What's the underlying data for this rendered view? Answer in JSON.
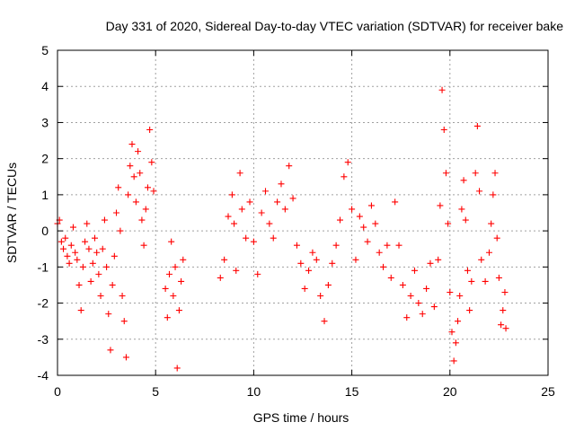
{
  "chart_data": {
    "type": "scatter",
    "title": "Day 331 of 2020, Sidereal Day-to-day VTEC variation (SDTVAR) for receiver bake",
    "xlabel": "GPS time / hours",
    "ylabel": "SDTVAR / TECUs",
    "xlim": [
      0,
      25
    ],
    "ylim": [
      -4,
      5
    ],
    "xticks": [
      0,
      5,
      10,
      15,
      20,
      25
    ],
    "yticks": [
      -4,
      -3,
      -2,
      -1,
      0,
      1,
      2,
      3,
      4,
      5
    ],
    "xtick_labels": [
      "0",
      "5",
      "10",
      "15",
      "20",
      "25"
    ],
    "ytick_labels": [
      "-4",
      "-3",
      "-2",
      "-1",
      "0",
      "1",
      "2",
      "3",
      "4",
      "5"
    ],
    "grid": true,
    "marker": "+",
    "series": [
      {
        "name": "SDTVAR",
        "color": "#ff0000",
        "points": [
          [
            0.0,
            0.2
          ],
          [
            0.1,
            0.3
          ],
          [
            0.2,
            -0.3
          ],
          [
            0.3,
            -0.5
          ],
          [
            0.4,
            -0.2
          ],
          [
            0.5,
            -0.7
          ],
          [
            0.6,
            -0.9
          ],
          [
            0.7,
            -0.4
          ],
          [
            0.8,
            0.1
          ],
          [
            0.9,
            -0.6
          ],
          [
            1.0,
            -0.8
          ],
          [
            1.1,
            -1.5
          ],
          [
            1.2,
            -2.2
          ],
          [
            1.3,
            -1.0
          ],
          [
            1.4,
            -0.3
          ],
          [
            1.5,
            0.2
          ],
          [
            1.6,
            -0.5
          ],
          [
            1.7,
            -1.4
          ],
          [
            1.8,
            -0.9
          ],
          [
            1.9,
            -0.2
          ],
          [
            2.0,
            -0.6
          ],
          [
            2.1,
            -1.2
          ],
          [
            2.2,
            -1.8
          ],
          [
            2.3,
            -0.5
          ],
          [
            2.4,
            0.3
          ],
          [
            2.5,
            -1.0
          ],
          [
            2.6,
            -2.3
          ],
          [
            2.7,
            -3.3
          ],
          [
            2.8,
            -1.5
          ],
          [
            2.9,
            -0.7
          ],
          [
            3.0,
            0.5
          ],
          [
            3.1,
            1.2
          ],
          [
            3.2,
            0.0
          ],
          [
            3.3,
            -1.8
          ],
          [
            3.4,
            -2.5
          ],
          [
            3.5,
            -3.5
          ],
          [
            3.6,
            1.0
          ],
          [
            3.7,
            1.8
          ],
          [
            3.8,
            2.4
          ],
          [
            3.9,
            1.5
          ],
          [
            4.0,
            0.8
          ],
          [
            4.1,
            2.2
          ],
          [
            4.2,
            1.6
          ],
          [
            4.3,
            0.3
          ],
          [
            4.4,
            -0.4
          ],
          [
            4.5,
            0.6
          ],
          [
            4.6,
            1.2
          ],
          [
            4.7,
            2.8
          ],
          [
            4.8,
            1.9
          ],
          [
            4.9,
            1.1
          ],
          [
            5.5,
            -1.6
          ],
          [
            5.6,
            -2.4
          ],
          [
            5.7,
            -1.2
          ],
          [
            5.8,
            -0.3
          ],
          [
            5.9,
            -1.8
          ],
          [
            6.0,
            -1.0
          ],
          [
            6.1,
            -3.8
          ],
          [
            6.2,
            -2.2
          ],
          [
            6.3,
            -1.4
          ],
          [
            6.4,
            -0.8
          ],
          [
            8.3,
            -1.3
          ],
          [
            8.5,
            -0.8
          ],
          [
            8.7,
            0.4
          ],
          [
            8.9,
            1.0
          ],
          [
            9.0,
            0.2
          ],
          [
            9.1,
            -1.1
          ],
          [
            9.3,
            1.6
          ],
          [
            9.4,
            0.6
          ],
          [
            9.6,
            -0.2
          ],
          [
            9.8,
            0.8
          ],
          [
            10.0,
            -0.3
          ],
          [
            10.2,
            -1.2
          ],
          [
            10.4,
            0.5
          ],
          [
            10.6,
            1.1
          ],
          [
            10.8,
            0.2
          ],
          [
            11.0,
            -0.2
          ],
          [
            11.2,
            0.8
          ],
          [
            11.4,
            1.3
          ],
          [
            11.6,
            0.6
          ],
          [
            11.8,
            1.8
          ],
          [
            12.0,
            0.9
          ],
          [
            12.2,
            -0.4
          ],
          [
            12.4,
            -0.9
          ],
          [
            12.6,
            -1.6
          ],
          [
            12.8,
            -1.1
          ],
          [
            13.0,
            -0.6
          ],
          [
            13.2,
            -0.8
          ],
          [
            13.4,
            -1.8
          ],
          [
            13.6,
            -2.5
          ],
          [
            13.8,
            -1.5
          ],
          [
            14.0,
            -0.9
          ],
          [
            14.2,
            -0.4
          ],
          [
            14.4,
            0.3
          ],
          [
            14.6,
            1.5
          ],
          [
            14.8,
            1.9
          ],
          [
            15.0,
            0.6
          ],
          [
            15.2,
            -0.8
          ],
          [
            15.4,
            0.4
          ],
          [
            15.6,
            0.1
          ],
          [
            15.8,
            -0.3
          ],
          [
            16.0,
            0.7
          ],
          [
            16.2,
            0.2
          ],
          [
            16.4,
            -0.6
          ],
          [
            16.6,
            -1.0
          ],
          [
            16.8,
            -0.4
          ],
          [
            17.0,
            -1.3
          ],
          [
            17.2,
            0.8
          ],
          [
            17.4,
            -0.4
          ],
          [
            17.6,
            -1.5
          ],
          [
            17.8,
            -2.4
          ],
          [
            18.0,
            -1.8
          ],
          [
            18.2,
            -1.1
          ],
          [
            18.4,
            -2.0
          ],
          [
            18.6,
            -2.3
          ],
          [
            18.8,
            -1.6
          ],
          [
            19.0,
            -0.9
          ],
          [
            19.2,
            -2.1
          ],
          [
            19.4,
            -0.8
          ],
          [
            19.5,
            0.7
          ],
          [
            19.6,
            3.9
          ],
          [
            19.7,
            2.8
          ],
          [
            19.8,
            1.6
          ],
          [
            19.9,
            0.2
          ],
          [
            20.0,
            -1.7
          ],
          [
            20.1,
            -2.8
          ],
          [
            20.2,
            -3.6
          ],
          [
            20.3,
            -3.1
          ],
          [
            20.4,
            -2.5
          ],
          [
            20.5,
            -1.8
          ],
          [
            20.6,
            0.6
          ],
          [
            20.7,
            1.4
          ],
          [
            20.8,
            0.3
          ],
          [
            20.9,
            -1.1
          ],
          [
            21.0,
            -2.2
          ],
          [
            21.1,
            -1.4
          ],
          [
            21.3,
            1.6
          ],
          [
            21.4,
            2.9
          ],
          [
            21.5,
            1.1
          ],
          [
            21.6,
            -0.8
          ],
          [
            21.8,
            -1.4
          ],
          [
            22.0,
            -0.6
          ],
          [
            22.1,
            0.2
          ],
          [
            22.2,
            1.0
          ],
          [
            22.3,
            1.6
          ],
          [
            22.4,
            -0.2
          ],
          [
            22.5,
            -1.3
          ],
          [
            22.6,
            -2.6
          ],
          [
            22.7,
            -2.2
          ],
          [
            22.8,
            -1.7
          ],
          [
            22.85,
            -2.7
          ]
        ]
      }
    ]
  }
}
